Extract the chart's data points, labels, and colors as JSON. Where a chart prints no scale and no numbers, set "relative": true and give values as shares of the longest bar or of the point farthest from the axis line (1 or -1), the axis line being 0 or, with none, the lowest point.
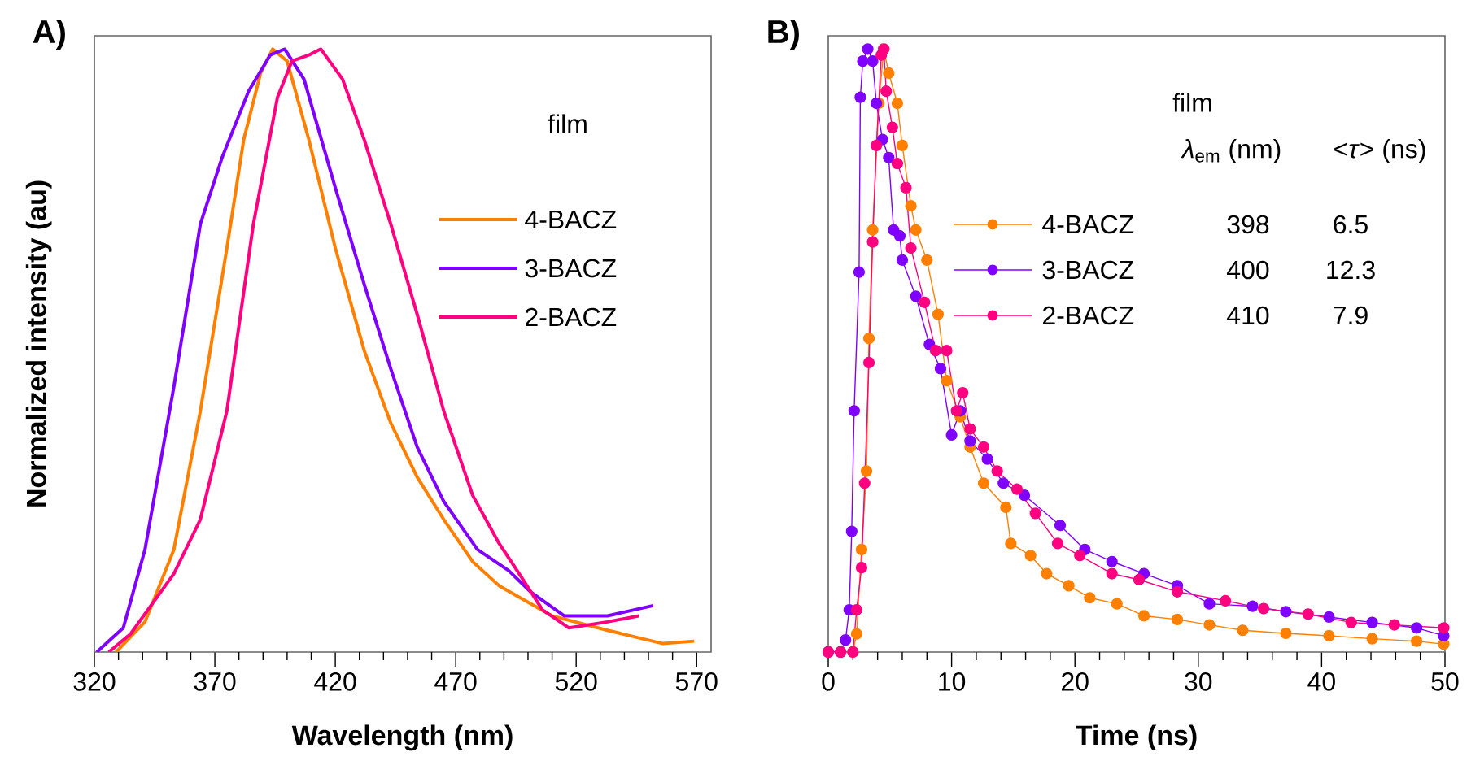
{
  "chart_data": [
    {
      "type": "line",
      "title": "A)",
      "xlabel": "Wavelength (nm)",
      "ylabel": "Normalized intensity (au)",
      "relative": true,
      "xlim": [
        320,
        576
      ],
      "xticks": [
        320,
        {
          "value": 330,
          "label": null
        },
        {
          "value": 340,
          "label": null
        },
        {
          "value": 350,
          "label": null
        },
        {
          "value": 360,
          "label": null
        },
        370,
        {
          "value": 380,
          "label": null
        },
        {
          "value": 390,
          "label": null
        },
        {
          "value": 400,
          "label": null
        },
        {
          "value": 410,
          "label": null
        },
        420,
        {
          "value": 430,
          "label": null
        },
        {
          "value": 440,
          "label": null
        },
        {
          "value": 450,
          "label": null
        },
        {
          "value": 460,
          "label": null
        },
        470,
        {
          "value": 480,
          "label": null
        },
        {
          "value": 490,
          "label": null
        },
        {
          "value": 500,
          "label": null
        },
        {
          "value": 510,
          "label": null
        },
        520,
        {
          "value": 530,
          "label": null
        },
        {
          "value": 540,
          "label": null
        },
        {
          "value": 550,
          "label": null
        },
        {
          "value": 560,
          "label": null
        },
        570
      ],
      "legend": "top right",
      "annotations": [
        "film"
      ],
      "series": [
        {
          "name": "4-BACZ",
          "color": "#ff8000",
          "x": [
            329,
            341,
            353,
            364,
            375,
            382,
            389,
            394,
            400,
            409,
            420,
            432,
            443,
            454,
            465,
            477,
            488,
            510,
            533,
            556,
            569
          ],
          "values": [
            0,
            0.05,
            0.17,
            0.4,
            0.67,
            0.85,
            0.96,
            1.0,
            0.98,
            0.85,
            0.67,
            0.5,
            0.38,
            0.29,
            0.22,
            0.15,
            0.11,
            0.06,
            0.036,
            0.014,
            0.018
          ]
        },
        {
          "name": "3-BACZ",
          "color": "#8000ff",
          "x": [
            321,
            332,
            341,
            353,
            364,
            373,
            384,
            393,
            399,
            407,
            420,
            432,
            443,
            454,
            465,
            479,
            492,
            501,
            515,
            533,
            552
          ],
          "values": [
            0,
            0.04,
            0.17,
            0.44,
            0.71,
            0.82,
            0.93,
            0.99,
            1.0,
            0.95,
            0.77,
            0.61,
            0.47,
            0.34,
            0.25,
            0.17,
            0.135,
            0.1,
            0.06,
            0.06,
            0.077
          ]
        },
        {
          "name": "2-BACZ",
          "color": "#ff0080",
          "x": [
            326,
            335,
            353,
            364,
            375,
            386,
            396,
            402,
            409,
            414,
            423,
            432,
            443,
            454,
            465,
            477,
            488,
            497,
            506,
            517,
            533,
            546
          ],
          "values": [
            0,
            0.03,
            0.13,
            0.22,
            0.4,
            0.71,
            0.92,
            0.98,
            0.99,
            1.0,
            0.95,
            0.85,
            0.71,
            0.56,
            0.4,
            0.26,
            0.18,
            0.126,
            0.07,
            0.04,
            0.05,
            0.06
          ]
        }
      ]
    },
    {
      "type": "line",
      "title": "B)",
      "xlabel": "Time (ns)",
      "relative": true,
      "xlim": [
        0,
        50
      ],
      "marker": "circle",
      "xticks": [
        0,
        {
          "value": 2,
          "label": null
        },
        {
          "value": 4,
          "label": null
        },
        {
          "value": 6,
          "label": null
        },
        {
          "value": 8,
          "label": null
        },
        10,
        {
          "value": 12,
          "label": null
        },
        {
          "value": 14,
          "label": null
        },
        {
          "value": 16,
          "label": null
        },
        {
          "value": 18,
          "label": null
        },
        20,
        {
          "value": 22,
          "label": null
        },
        {
          "value": 24,
          "label": null
        },
        {
          "value": 26,
          "label": null
        },
        {
          "value": 28,
          "label": null
        },
        30,
        {
          "value": 32,
          "label": null
        },
        {
          "value": 34,
          "label": null
        },
        {
          "value": 36,
          "label": null
        },
        {
          "value": 38,
          "label": null
        },
        40,
        {
          "value": 42,
          "label": null
        },
        {
          "value": 44,
          "label": null
        },
        {
          "value": 46,
          "label": null
        },
        {
          "value": 48,
          "label": null
        },
        50
      ],
      "legend": "top",
      "annotations": [
        "film",
        "*λ*$_{em}$ (nm)",
        "<*τ*> (ns)",
        "398",
        "6.5",
        "400",
        "12.3",
        "410",
        "7.9"
      ],
      "series": [
        {
          "name": "4-BACZ",
          "color": "#ff8000",
          "x": [
            0,
            1,
            2,
            2.3,
            2.7,
            3.1,
            3.3,
            3.6,
            4.1,
            4.5,
            4.9,
            5.6,
            6.0,
            6.7,
            7.1,
            8.0,
            8.9,
            9.6,
            10.7,
            11.5,
            12.6,
            14.4,
            14.8,
            16.4,
            17.7,
            19.5,
            21.2,
            23.4,
            25.6,
            28.3,
            30.9,
            33.6,
            37.1,
            40.6,
            44.1,
            47.7,
            49.9
          ],
          "values": [
            0,
            0,
            0,
            0.03,
            0.17,
            0.3,
            0.52,
            0.7,
            0.91,
            1.0,
            0.96,
            0.91,
            0.84,
            0.74,
            0.7,
            0.65,
            0.56,
            0.45,
            0.39,
            0.34,
            0.28,
            0.24,
            0.18,
            0.16,
            0.13,
            0.11,
            0.09,
            0.08,
            0.06,
            0.054,
            0.045,
            0.036,
            0.031,
            0.027,
            0.022,
            0.018,
            0.013
          ]
        },
        {
          "name": "3-BACZ",
          "color": "#8000ff",
          "x": [
            0,
            1,
            1.4,
            1.7,
            1.9,
            2.1,
            2.5,
            2.6,
            2.8,
            3.2,
            3.6,
            3.9,
            4.4,
            4.9,
            5.3,
            5.8,
            6.0,
            7.1,
            8.2,
            9.1,
            10.0,
            10.7,
            11.5,
            12.9,
            14.2,
            15.9,
            18.8,
            20.8,
            23.0,
            25.6,
            28.3,
            30.9,
            34.4,
            37.1,
            40.6,
            44.1,
            47.7,
            49.9
          ],
          "values": [
            0,
            0,
            0.02,
            0.07,
            0.2,
            0.4,
            0.63,
            0.92,
            0.98,
            1.0,
            0.98,
            0.91,
            0.85,
            0.82,
            0.7,
            0.69,
            0.65,
            0.59,
            0.51,
            0.47,
            0.36,
            0.4,
            0.35,
            0.32,
            0.28,
            0.26,
            0.21,
            0.17,
            0.15,
            0.13,
            0.11,
            0.08,
            0.076,
            0.067,
            0.058,
            0.049,
            0.04,
            0.027
          ]
        },
        {
          "name": "2-BACZ",
          "color": "#ff0080",
          "x": [
            0,
            1,
            2,
            2.3,
            2.7,
            2.95,
            3.3,
            3.6,
            3.9,
            4.3,
            4.5,
            4.7,
            5.2,
            5.6,
            6.3,
            6.7,
            7.8,
            8.7,
            9.6,
            10.4,
            10.9,
            11.5,
            12.6,
            13.7,
            15.3,
            16.8,
            18.6,
            20.4,
            23.0,
            25.2,
            28.3,
            32.2,
            35.3,
            38.9,
            42.4,
            45.9,
            49.9
          ],
          "values": [
            0,
            0,
            0,
            0.07,
            0.14,
            0.28,
            0.48,
            0.68,
            0.84,
            0.99,
            1.0,
            0.93,
            0.87,
            0.81,
            0.77,
            0.67,
            0.58,
            0.5,
            0.5,
            0.4,
            0.43,
            0.37,
            0.34,
            0.3,
            0.27,
            0.23,
            0.18,
            0.16,
            0.13,
            0.12,
            0.1,
            0.085,
            0.072,
            0.063,
            0.049,
            0.045,
            0.04
          ]
        }
      ]
    }
  ]
}
